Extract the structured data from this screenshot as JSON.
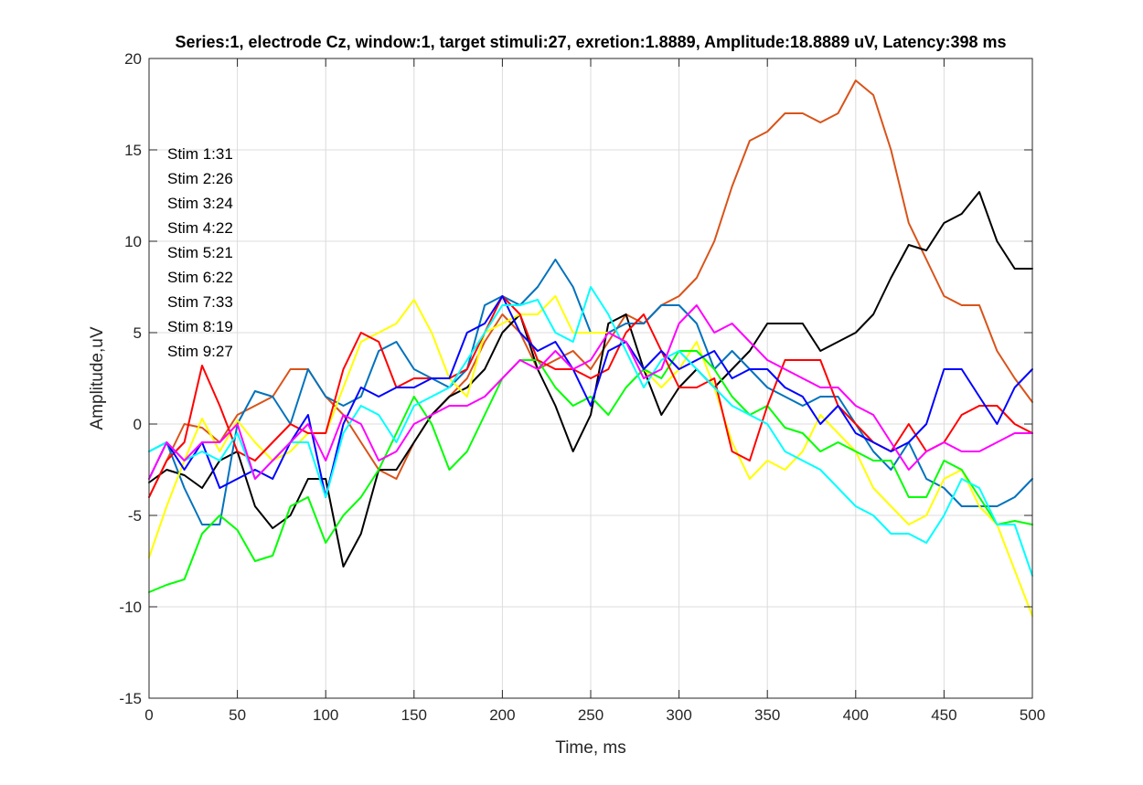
{
  "chart_data": {
    "type": "line",
    "title": "Series:1, electrode Cz, window:1, target stimuli:27, exretion:1.8889, Amplitude:18.8889 uV, Latency:398 ms",
    "xlabel": "Time, ms",
    "ylabel": "Amplitude,uV",
    "xlim": [
      0,
      500
    ],
    "ylim": [
      -15,
      20
    ],
    "xticks": [
      0,
      50,
      100,
      150,
      200,
      250,
      300,
      350,
      400,
      450,
      500
    ],
    "yticks": [
      -15,
      -10,
      -5,
      0,
      5,
      10,
      15,
      20
    ],
    "grid": true,
    "annotations": [
      "Stim 1:31",
      "Stim 2:26",
      "Stim 3:24",
      "Stim 4:22",
      "Stim 5:21",
      "Stim 6:22",
      "Stim 7:33",
      "Stim 8:19",
      "Stim 9:27"
    ],
    "series": [
      {
        "color": "#D95319",
        "x": [
          0,
          10,
          20,
          30,
          40,
          50,
          60,
          70,
          80,
          90,
          100,
          110,
          120,
          130,
          140,
          150,
          160,
          170,
          180,
          190,
          200,
          210,
          220,
          230,
          240,
          250,
          260,
          270,
          280,
          290,
          300,
          310,
          320,
          330,
          340,
          350,
          360,
          370,
          380,
          390,
          400,
          410,
          420,
          430,
          440,
          450,
          460,
          470,
          480,
          490,
          500
        ],
        "y": [
          -4,
          -2,
          0,
          -0.2,
          -1,
          0.5,
          1,
          1.5,
          3,
          3,
          1.5,
          0.5,
          -1,
          -2.5,
          -3,
          -1,
          0.5,
          1.5,
          2.5,
          4.5,
          6,
          5,
          3,
          3.5,
          4,
          3,
          4.5,
          6,
          5.5,
          6.5,
          7,
          8,
          10,
          13,
          15.5,
          16,
          17,
          17,
          16.5,
          17,
          18.8,
          18,
          15,
          11,
          9,
          7,
          6.5,
          6.5,
          4,
          2.5,
          1.2
        ]
      },
      {
        "color": "#000000",
        "x": [
          0,
          10,
          20,
          30,
          40,
          50,
          60,
          70,
          80,
          90,
          100,
          110,
          120,
          130,
          140,
          150,
          160,
          170,
          180,
          190,
          200,
          210,
          220,
          230,
          240,
          250,
          260,
          270,
          280,
          290,
          300,
          310,
          320,
          330,
          340,
          350,
          360,
          370,
          380,
          390,
          400,
          410,
          420,
          430,
          440,
          450,
          460,
          470,
          480,
          490,
          500
        ],
        "y": [
          -3.2,
          -2.5,
          -2.8,
          -3.5,
          -2,
          -1.5,
          -4.5,
          -5.7,
          -5,
          -3,
          -3,
          -7.8,
          -6,
          -2.5,
          -2.5,
          -1,
          0.5,
          1.5,
          2,
          3,
          5,
          6,
          3,
          1,
          -1.5,
          0.5,
          5.5,
          6,
          3,
          0.5,
          2,
          3,
          2,
          3,
          4,
          5.5,
          5.5,
          5.5,
          4,
          4.5,
          5,
          6,
          8,
          9.8,
          9.5,
          11,
          11.5,
          12.7,
          10,
          8.5,
          8.5
        ]
      },
      {
        "color": "#0072BD",
        "x": [
          0,
          10,
          20,
          30,
          40,
          50,
          60,
          70,
          80,
          90,
          100,
          110,
          120,
          130,
          140,
          150,
          160,
          170,
          180,
          190,
          200,
          210,
          220,
          230,
          240,
          250,
          260,
          270,
          280,
          290,
          300,
          310,
          320,
          330,
          340,
          350,
          360,
          370,
          380,
          390,
          400,
          410,
          420,
          430,
          440,
          450,
          460,
          470,
          480,
          490,
          500
        ],
        "y": [
          -1.5,
          -1,
          -3.5,
          -5.5,
          -5.5,
          0,
          1.8,
          1.5,
          0,
          3,
          1.5,
          1,
          1.5,
          4,
          4.5,
          3,
          2.5,
          2,
          3,
          6.5,
          7,
          6.5,
          7.5,
          9,
          7.5,
          5,
          5,
          5.5,
          5.5,
          6.5,
          6.5,
          5.5,
          3,
          4,
          3,
          2,
          1.5,
          1,
          1.5,
          1.5,
          0,
          -1.5,
          -2.5,
          -1,
          -3,
          -3.5,
          -4.5,
          -4.5,
          -4.5,
          -4,
          -3
        ]
      },
      {
        "color": "#FFFF00",
        "x": [
          0,
          10,
          20,
          30,
          40,
          50,
          60,
          70,
          80,
          90,
          100,
          110,
          120,
          130,
          140,
          150,
          160,
          170,
          180,
          190,
          200,
          210,
          220,
          230,
          240,
          250,
          260,
          270,
          280,
          290,
          300,
          310,
          320,
          330,
          340,
          350,
          360,
          370,
          380,
          390,
          400,
          410,
          420,
          430,
          440,
          450,
          460,
          470,
          480,
          490,
          500
        ],
        "y": [
          -7.3,
          -4.5,
          -2,
          0.3,
          -1.5,
          0.2,
          -1,
          -2,
          -1.5,
          -0.5,
          -0.5,
          2,
          4.5,
          5,
          5.5,
          6.8,
          5,
          2.5,
          1.5,
          5,
          5.5,
          6,
          6,
          7,
          5,
          5,
          5,
          4.5,
          3,
          2,
          3,
          4.5,
          2,
          -1,
          -3,
          -2,
          -2.5,
          -1.5,
          0.5,
          -0.5,
          -1.5,
          -3.5,
          -4.5,
          -5.5,
          -5,
          -3,
          -2.5,
          -4.5,
          -5.5,
          -8,
          -10.5
        ]
      },
      {
        "color": "#00FF00",
        "x": [
          0,
          10,
          20,
          30,
          40,
          50,
          60,
          70,
          80,
          90,
          100,
          110,
          120,
          130,
          140,
          150,
          160,
          170,
          180,
          190,
          200,
          210,
          220,
          230,
          240,
          250,
          260,
          270,
          280,
          290,
          300,
          310,
          320,
          330,
          340,
          350,
          360,
          370,
          380,
          390,
          400,
          410,
          420,
          430,
          440,
          450,
          460,
          470,
          480,
          490,
          500
        ],
        "y": [
          -9.2,
          -8.8,
          -8.5,
          -6,
          -5,
          -5.8,
          -7.5,
          -7.2,
          -4.5,
          -4,
          -6.5,
          -5,
          -4,
          -2.5,
          -0.5,
          1.5,
          0,
          -2.5,
          -1.5,
          0.5,
          2.5,
          3.5,
          3.5,
          2,
          1,
          1.5,
          0.5,
          2,
          3,
          2.5,
          4,
          4,
          3,
          1.5,
          0.5,
          1,
          -0.2,
          -0.5,
          -1.5,
          -1,
          -1.5,
          -2,
          -2,
          -4,
          -4,
          -2,
          -2.5,
          -4,
          -5.5,
          -5.3,
          -5.5
        ]
      },
      {
        "color": "#FF0000",
        "x": [
          0,
          10,
          20,
          30,
          40,
          50,
          60,
          70,
          80,
          90,
          100,
          110,
          120,
          130,
          140,
          150,
          160,
          170,
          180,
          190,
          200,
          210,
          220,
          230,
          240,
          250,
          260,
          270,
          280,
          290,
          300,
          310,
          320,
          330,
          340,
          350,
          360,
          370,
          380,
          390,
          400,
          410,
          420,
          430,
          440,
          450,
          460,
          470,
          480,
          490,
          500
        ],
        "y": [
          -4,
          -2,
          -1,
          3.2,
          1,
          -1.5,
          -2,
          -1,
          0,
          -0.5,
          -0.5,
          3,
          5,
          4.5,
          2,
          2.5,
          2.5,
          2.5,
          3,
          5,
          7,
          6,
          3.5,
          3,
          3,
          2.5,
          3,
          5,
          6,
          4,
          2,
          2,
          2.5,
          -1.5,
          -2,
          1,
          3.5,
          3.5,
          3.5,
          1,
          0,
          -1,
          -1.5,
          0,
          -1.5,
          -1,
          0.5,
          1,
          1,
          0,
          -0.5
        ]
      },
      {
        "color": "#0000FF",
        "x": [
          0,
          10,
          20,
          30,
          40,
          50,
          60,
          70,
          80,
          90,
          100,
          110,
          120,
          130,
          140,
          150,
          160,
          170,
          180,
          190,
          200,
          210,
          220,
          230,
          240,
          250,
          260,
          270,
          280,
          290,
          300,
          310,
          320,
          330,
          340,
          350,
          360,
          370,
          380,
          390,
          400,
          410,
          420,
          430,
          440,
          450,
          460,
          470,
          480,
          490,
          500
        ],
        "y": [
          -3,
          -1,
          -2.5,
          -1,
          -3.5,
          -3,
          -2.5,
          -3,
          -1,
          0.5,
          -4,
          0,
          2,
          1.5,
          2,
          2,
          2.5,
          2.5,
          5,
          5.5,
          7,
          5,
          4,
          4.5,
          3,
          1,
          4,
          4.5,
          3,
          4,
          3,
          3.5,
          4,
          2.5,
          3,
          3,
          2,
          1.5,
          0,
          1,
          -0.5,
          -1,
          -1.5,
          -1,
          0,
          3,
          3,
          1.5,
          0,
          2,
          3
        ]
      },
      {
        "color": "#00FFFF",
        "x": [
          0,
          10,
          20,
          30,
          40,
          50,
          60,
          70,
          80,
          90,
          100,
          110,
          120,
          130,
          140,
          150,
          160,
          170,
          180,
          190,
          200,
          210,
          220,
          230,
          240,
          250,
          260,
          270,
          280,
          290,
          300,
          310,
          320,
          330,
          340,
          350,
          360,
          370,
          380,
          390,
          400,
          410,
          420,
          430,
          440,
          450,
          460,
          470,
          480,
          490,
          500
        ],
        "y": [
          -1.5,
          -1,
          -2,
          -1.5,
          -2,
          -0.5,
          -3,
          -2,
          -1,
          -1,
          -4,
          -0.5,
          1,
          0.5,
          -1,
          1,
          1.5,
          2,
          3.5,
          5,
          6.5,
          6.5,
          6.8,
          5,
          4.5,
          7.5,
          6,
          4,
          2,
          3.5,
          4,
          3,
          2,
          1,
          0.5,
          0,
          -1.5,
          -2,
          -2.5,
          -3.5,
          -4.5,
          -5,
          -6,
          -6,
          -6.5,
          -5,
          -3,
          -3.5,
          -5.5,
          -5.5,
          -8.3
        ]
      },
      {
        "color": "#FF00FF",
        "x": [
          0,
          10,
          20,
          30,
          40,
          50,
          60,
          70,
          80,
          90,
          100,
          110,
          120,
          130,
          140,
          150,
          160,
          170,
          180,
          190,
          200,
          210,
          220,
          230,
          240,
          250,
          260,
          270,
          280,
          290,
          300,
          310,
          320,
          330,
          340,
          350,
          360,
          370,
          380,
          390,
          400,
          410,
          420,
          430,
          440,
          450,
          460,
          470,
          480,
          490,
          500
        ],
        "y": [
          -3,
          -1,
          -2,
          -1,
          -1,
          0,
          -3,
          -2,
          -1,
          0,
          -2,
          0.5,
          0,
          -2,
          -1.5,
          0,
          0.5,
          1,
          1,
          1.5,
          2.5,
          3.5,
          3,
          4,
          3,
          3.5,
          5,
          4.5,
          2.5,
          3,
          5.5,
          6.5,
          5,
          5.5,
          4.5,
          3.5,
          3,
          2.5,
          2,
          2,
          1,
          0.5,
          -1,
          -2.5,
          -1.5,
          -1,
          -1.5,
          -1.5,
          -1,
          -0.5,
          -0.5
        ]
      }
    ]
  }
}
